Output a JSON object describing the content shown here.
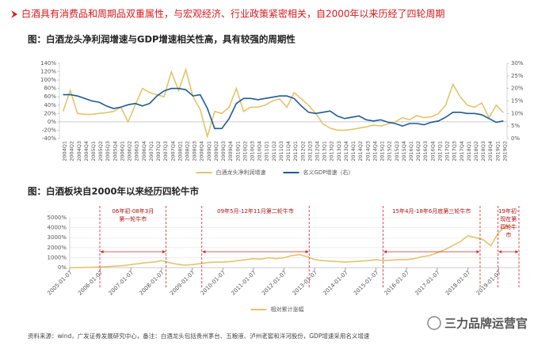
{
  "header": "白酒具有消费品和周期品双重属性，与宏观经济、行业政策紧密相关，自2000年以来历经了四轮周期",
  "footer": "资料来源：wind，广发证券发展研究中心，备注：白酒龙头包括贵州茅台、五粮液、泸州老窖和洋河股份，GDP增速采用名义增速",
  "watermark": "三力品牌运营官",
  "chart_data": [
    {
      "type": "line",
      "title": "图：白酒龙头净利润增速与GDP增速相关性高，具有较强的周期性",
      "categories": [
        "2004Q1",
        "2004Q2",
        "2004Q3",
        "2004Q4",
        "2005Q1",
        "2005Q2",
        "2005Q3",
        "2005Q4",
        "2006Q1",
        "2006Q2",
        "2006Q3",
        "2006Q4",
        "2007Q1",
        "2007Q2",
        "2007Q3",
        "2007Q4",
        "2008Q1",
        "2008Q2",
        "2008Q3",
        "2008Q4",
        "2009Q1",
        "2009Q2",
        "2009Q3",
        "2009Q4",
        "2010Q1",
        "2010Q2",
        "2010Q3",
        "2010Q4",
        "2011Q1",
        "2011Q2",
        "2011Q3",
        "2011Q4",
        "2012Q1",
        "2012Q2",
        "2012Q3",
        "2012Q4",
        "2013Q1",
        "2013Q2",
        "2013Q3",
        "2013Q4",
        "2014Q1",
        "2014Q2",
        "2014Q3",
        "2014Q4",
        "2015Q1",
        "2015Q2",
        "2015Q3",
        "2015Q4",
        "2016Q1",
        "2016Q2",
        "2016Q3",
        "2016Q4",
        "2017Q1",
        "2017Q2",
        "2017Q3",
        "2017Q4",
        "2018Q1",
        "2018Q2",
        "2018Q3",
        "2018Q4",
        "2019Q1",
        "2019Q2"
      ],
      "series": [
        {
          "name": "白酒龙头净利润增速",
          "color": "#e3c46a",
          "values": [
            25,
            75,
            20,
            18,
            18,
            20,
            22,
            25,
            35,
            0,
            40,
            80,
            70,
            65,
            60,
            120,
            75,
            125,
            60,
            30,
            -35,
            25,
            20,
            35,
            80,
            25,
            35,
            35,
            40,
            50,
            55,
            35,
            70,
            55,
            40,
            20,
            -5,
            -15,
            -20,
            -20,
            -18,
            -15,
            -12,
            -8,
            -10,
            -5,
            0,
            10,
            5,
            15,
            10,
            12,
            20,
            40,
            90,
            60,
            40,
            35,
            45,
            10,
            40,
            22
          ]
        },
        {
          "name": "名义GDP增速（右）",
          "color": "#1f5a96",
          "axis": "y2",
          "values": [
            17.5,
            17.5,
            17,
            16,
            15,
            14.5,
            13,
            12,
            12.5,
            13.5,
            14,
            13,
            14,
            17,
            19,
            20,
            20,
            19.5,
            17,
            17.5,
            12,
            4,
            4,
            8,
            14,
            16,
            16,
            15.5,
            16,
            16.5,
            17,
            17,
            16,
            13,
            10.5,
            10,
            10.5,
            11,
            9,
            8,
            8.5,
            9,
            7.5,
            7,
            7.5,
            6.5,
            6,
            5,
            6,
            6,
            5.5,
            6.5,
            7,
            8.5,
            10.5,
            10.5,
            10,
            10,
            9.5,
            8,
            6.5,
            7
          ]
        }
      ],
      "ylim": [
        -40,
        140
      ],
      "yticks": [
        {
          "value": -40,
          "label": "-40%"
        },
        {
          "value": -20,
          "label": "-20%"
        },
        {
          "value": 0,
          "label": "0%"
        },
        {
          "value": 20,
          "label": "20%"
        },
        {
          "value": 40,
          "label": "40%"
        },
        {
          "value": 60,
          "label": "60%"
        },
        {
          "value": 80,
          "label": "80%"
        },
        {
          "value": 100,
          "label": "100%"
        },
        {
          "value": 120,
          "label": "120%"
        },
        {
          "value": 140,
          "label": "140%"
        }
      ],
      "y2lim": [
        0,
        30
      ],
      "y2ticks": [
        {
          "value": 0,
          "label": "0%"
        },
        {
          "value": 5,
          "label": "5%"
        },
        {
          "value": 10,
          "label": "10%"
        },
        {
          "value": 15,
          "label": "15%"
        },
        {
          "value": 20,
          "label": "20%"
        },
        {
          "value": 25,
          "label": "25%"
        },
        {
          "value": 30,
          "label": "30%"
        }
      ],
      "legend": "bottom"
    },
    {
      "type": "line",
      "title": "图：白酒板块自2000年以来经历四轮牛市",
      "x": [
        "2005-01-07",
        "2005-04-07",
        "2005-07-07",
        "2005-10-07",
        "2006-01-07",
        "2006-04-07",
        "2006-07-07",
        "2006-10-07",
        "2007-01-07",
        "2007-04-07",
        "2007-07-07",
        "2007-10-07",
        "2008-01-07",
        "2008-04-07",
        "2008-07-07",
        "2008-10-07",
        "2009-01-07",
        "2009-04-07",
        "2009-07-07",
        "2009-10-07",
        "2010-01-07",
        "2010-04-07",
        "2010-07-07",
        "2010-10-07",
        "2011-01-07",
        "2011-04-07",
        "2011-07-07",
        "2011-10-07",
        "2012-01-07",
        "2012-04-07",
        "2012-07-07",
        "2012-10-07",
        "2013-01-07",
        "2013-04-07",
        "2013-07-07",
        "2013-10-07",
        "2014-01-07",
        "2014-04-07",
        "2014-07-07",
        "2014-10-07",
        "2015-01-07",
        "2015-04-07",
        "2015-07-07",
        "2015-10-07",
        "2016-01-07",
        "2016-04-07",
        "2016-07-07",
        "2016-10-07",
        "2017-01-07",
        "2017-04-07",
        "2017-07-07",
        "2017-10-07",
        "2018-01-07",
        "2018-04-07",
        "2018-07-07",
        "2018-10-07",
        "2019-01-07",
        "2019-04-07",
        "2019-07-07"
      ],
      "series": [
        {
          "name": "相对累计涨幅",
          "color": "#e3c46a",
          "values": [
            0,
            10,
            20,
            30,
            60,
            100,
            150,
            200,
            300,
            400,
            500,
            550,
            700,
            500,
            350,
            250,
            300,
            400,
            500,
            550,
            550,
            600,
            700,
            800,
            900,
            850,
            1000,
            900,
            1000,
            1200,
            1300,
            1100,
            800,
            700,
            650,
            600,
            550,
            600,
            650,
            700,
            800,
            700,
            750,
            800,
            800,
            900,
            1100,
            1200,
            1500,
            1800,
            2200,
            2600,
            3200,
            3000,
            2800,
            2200,
            3500,
            4200,
            4000
          ]
        }
      ],
      "xlim": [
        "2005-01-07",
        "2019-09-07"
      ],
      "xticks": [
        "2005-01-07",
        "2006-01-07",
        "2007-01-07",
        "2008-01-07",
        "2009-01-07",
        "2010-01-07",
        "2011-01-07",
        "2012-01-07",
        "2013-01-07",
        "2014-01-07",
        "2015-01-07",
        "2016-01-07",
        "2017-01-07",
        "2018-01-07",
        "2019-01-07"
      ],
      "ylim": [
        0,
        5000
      ],
      "yticks": [
        {
          "value": 0,
          "label": "0%"
        },
        {
          "value": 1000,
          "label": "1000%"
        },
        {
          "value": 2000,
          "label": "2000%"
        },
        {
          "value": 3000,
          "label": "3000%"
        },
        {
          "value": 4000,
          "label": "4000%"
        },
        {
          "value": 5000,
          "label": "5000%"
        }
      ],
      "grid": true,
      "legend": "bottom",
      "periods": [
        {
          "label": [
            "06年初-08年3月",
            "第一轮牛市"
          ],
          "start": "2006-01",
          "end": "2008-03"
        },
        {
          "label": [
            "09年5月-12年11月第二轮牛市"
          ],
          "start": "2009-05",
          "end": "2012-11"
        },
        {
          "label": [
            "15年4月-18年6月底第三轮牛市"
          ],
          "start": "2015-04",
          "end": "2018-06"
        },
        {
          "label": [
            "19年初-",
            "现在第",
            "四轮牛",
            "市"
          ],
          "start": "2019-01",
          "end": null
        }
      ]
    }
  ]
}
